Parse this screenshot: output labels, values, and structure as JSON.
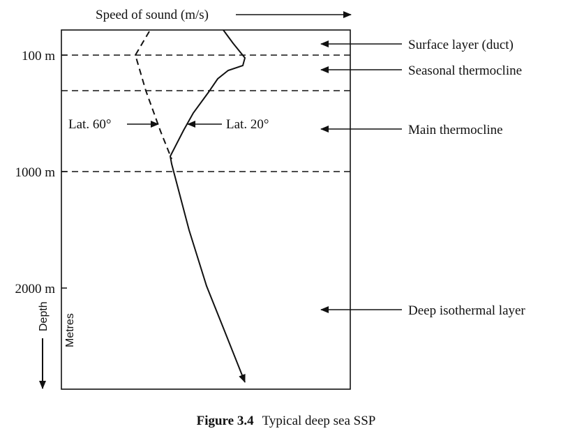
{
  "title": "Speed of sound (m/s)",
  "depth_labels": [
    "100 m",
    "1000 m",
    "2000 m"
  ],
  "axis": {
    "depth_label": "Depth",
    "units_label": "Metres"
  },
  "profiles": {
    "lat60": "Lat. 60°",
    "lat20": "Lat. 20°"
  },
  "layers": {
    "surface": "Surface layer (duct)",
    "seasonal": "Seasonal thermocline",
    "main": "Main thermocline",
    "deep": "Deep isothermal layer"
  },
  "caption": {
    "label": "Figure 3.4",
    "text": "Typical deep sea SSP"
  }
}
